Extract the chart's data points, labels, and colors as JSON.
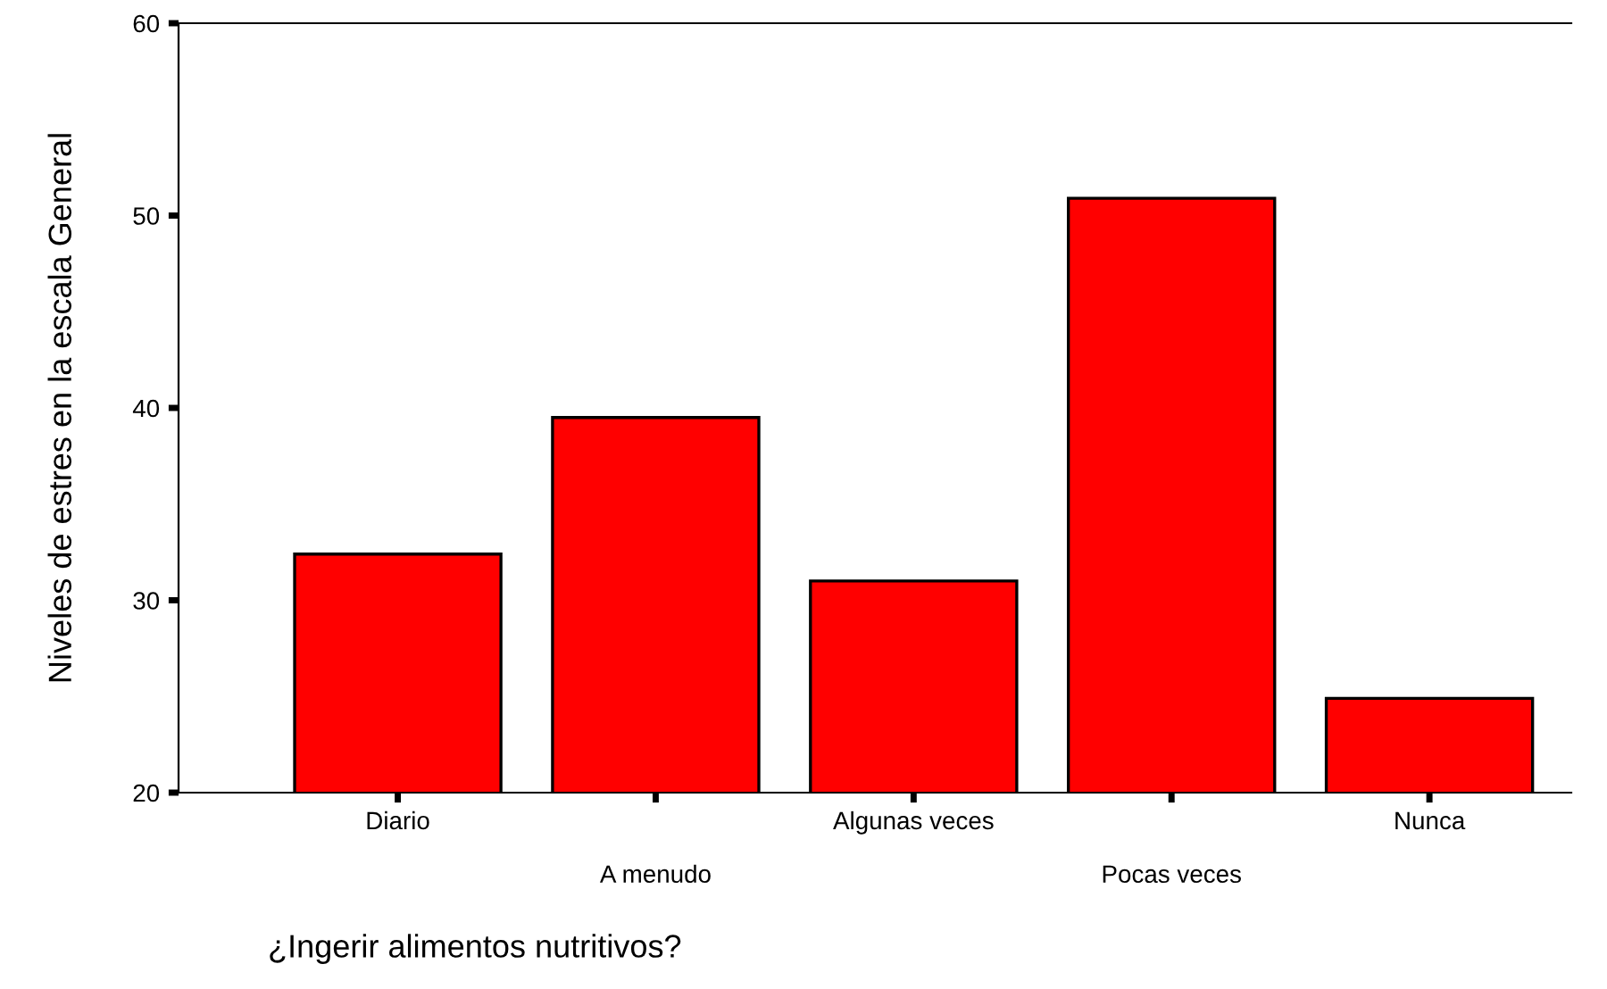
{
  "chart_data": {
    "type": "bar",
    "xlabel": "¿Ingerir alimentos nutritivos?",
    "ylabel": "Niveles de estres en la escala General",
    "categories": [
      "Diario",
      "A menudo",
      "Algunas veces",
      "Pocas veces",
      "Nunca"
    ],
    "values": [
      32.4,
      39.5,
      31.0,
      50.9,
      24.9
    ],
    "color": "#ff0000",
    "ylim": [
      20,
      60
    ],
    "yticks": [
      20,
      30,
      40,
      50,
      60
    ],
    "grid": false,
    "legend": false
  }
}
